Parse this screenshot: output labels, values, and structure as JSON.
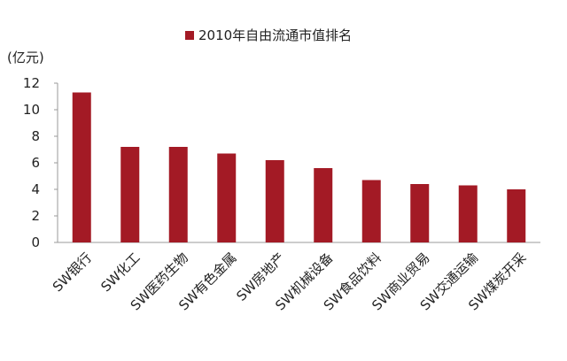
{
  "chart_data": {
    "type": "bar",
    "legend": {
      "label": "2010年自由流通市值排名",
      "position": "top",
      "color": "#a31a25"
    },
    "unit_label": "(亿元)",
    "categories": [
      "SW银行",
      "SW化工",
      "SW医药生物",
      "SW有色金属",
      "SW房地产",
      "SW机械设备",
      "SW食品饮料",
      "SW商业贸易",
      "SW交通运输",
      "SW煤炭开采"
    ],
    "series": [
      {
        "name": "2010年自由流通市值排名",
        "values": [
          11.3,
          7.2,
          7.2,
          6.7,
          6.2,
          5.6,
          4.7,
          4.4,
          4.3,
          4.0
        ]
      }
    ],
    "y_ticks": [
      "0",
      "2",
      "4",
      "6",
      "8",
      "10",
      "12"
    ],
    "ylim": [
      0,
      12
    ],
    "grid": false,
    "bar_color": "#a31a25"
  }
}
